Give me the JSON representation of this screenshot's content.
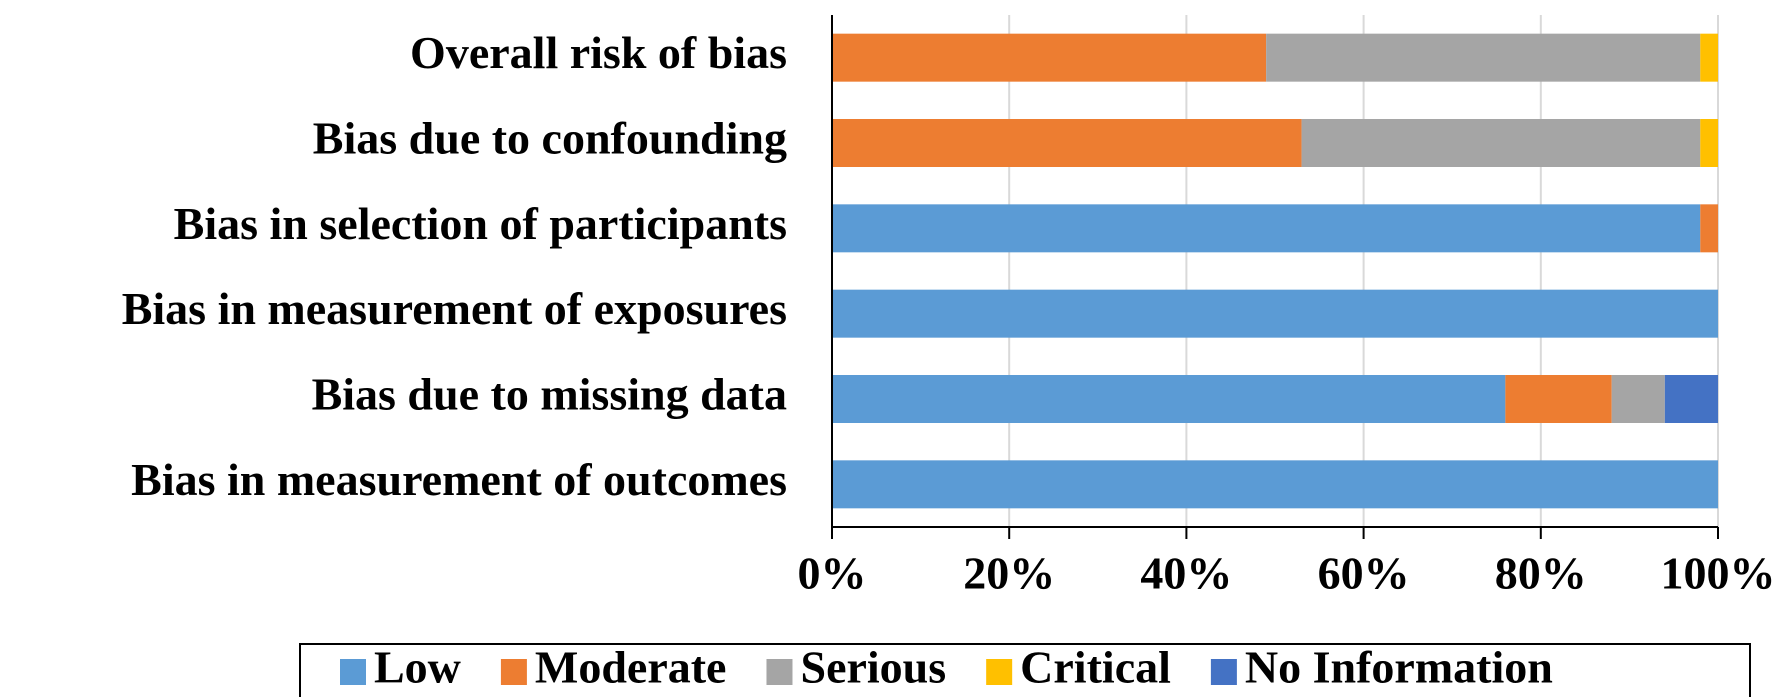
{
  "chart_data": {
    "type": "stacked-barh",
    "categories": [
      "Overall risk of bias",
      "Bias due to confounding",
      "Bias in selection of participants",
      "Bias in measurement of exposures",
      "Bias due to missing data",
      "Bias in measurement of outcomes"
    ],
    "series": [
      {
        "name": "Low",
        "color": "#5b9bd5",
        "values": [
          0,
          0,
          98,
          100,
          76,
          100
        ]
      },
      {
        "name": "Moderate",
        "color": "#ed7d31",
        "values": [
          49,
          53,
          2,
          0,
          12,
          0
        ]
      },
      {
        "name": "Serious",
        "color": "#a5a5a5",
        "values": [
          49,
          45,
          0,
          0,
          6,
          0
        ]
      },
      {
        "name": "Critical",
        "color": "#ffc000",
        "values": [
          2,
          2,
          0,
          0,
          0,
          0
        ]
      },
      {
        "name": "No Information",
        "color": "#4472c4",
        "values": [
          0,
          0,
          0,
          0,
          6,
          0
        ]
      }
    ],
    "xlim": [
      0,
      100
    ],
    "xticks": [
      {
        "value": 0,
        "label": "0%"
      },
      {
        "value": 20,
        "label": "20%"
      },
      {
        "value": 40,
        "label": "40%"
      },
      {
        "value": 60,
        "label": "60%"
      },
      {
        "value": 80,
        "label": "80%"
      },
      {
        "value": 100,
        "label": "100%"
      }
    ],
    "grid": true,
    "legend": "bottom"
  }
}
